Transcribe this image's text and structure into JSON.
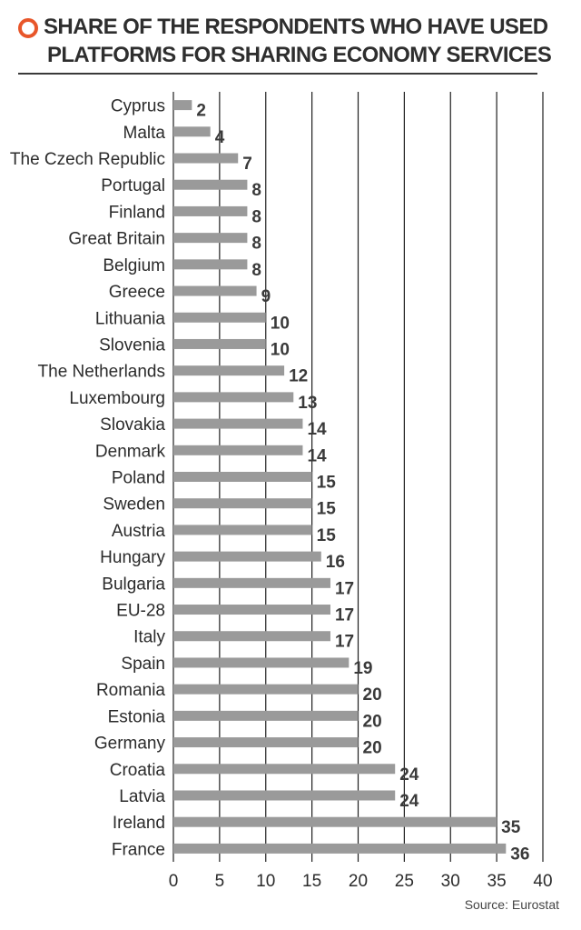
{
  "title": {
    "line1": "SHARE OF THE RESPONDENTS WHO  HAVE USED",
    "line2": "PLATFORMS FOR SHARING ECONOMY SERVICES",
    "icon": "ring-icon",
    "accent_color": "#e8562a"
  },
  "source": "Source: Eurostat",
  "chart_data": {
    "type": "bar",
    "orientation": "horizontal",
    "categories": [
      "Cyprus",
      "Malta",
      "The Czech Republic",
      "Portugal",
      "Finland",
      "Great Britain",
      "Belgium",
      "Greece",
      "Lithuania",
      "Slovenia",
      "The Netherlands",
      "Luxembourg",
      "Slovakia",
      "Denmark",
      "Poland",
      "Sweden",
      "Austria",
      "Hungary",
      "Bulgaria",
      "EU-28",
      "Italy",
      "Spain",
      "Romania",
      "Estonia",
      "Germany",
      "Croatia",
      "Latvia",
      "Ireland",
      "France"
    ],
    "values": [
      2,
      4,
      7,
      8,
      8,
      8,
      8,
      9,
      10,
      10,
      12,
      13,
      14,
      14,
      15,
      15,
      15,
      16,
      17,
      17,
      17,
      19,
      20,
      20,
      20,
      24,
      24,
      35,
      36
    ],
    "xlim": [
      0,
      40
    ],
    "xticks": [
      0,
      5,
      10,
      15,
      20,
      25,
      30,
      35,
      40
    ],
    "grid": true,
    "bar_color": "#9a9a9a",
    "label_color": "#3a3a3a"
  }
}
